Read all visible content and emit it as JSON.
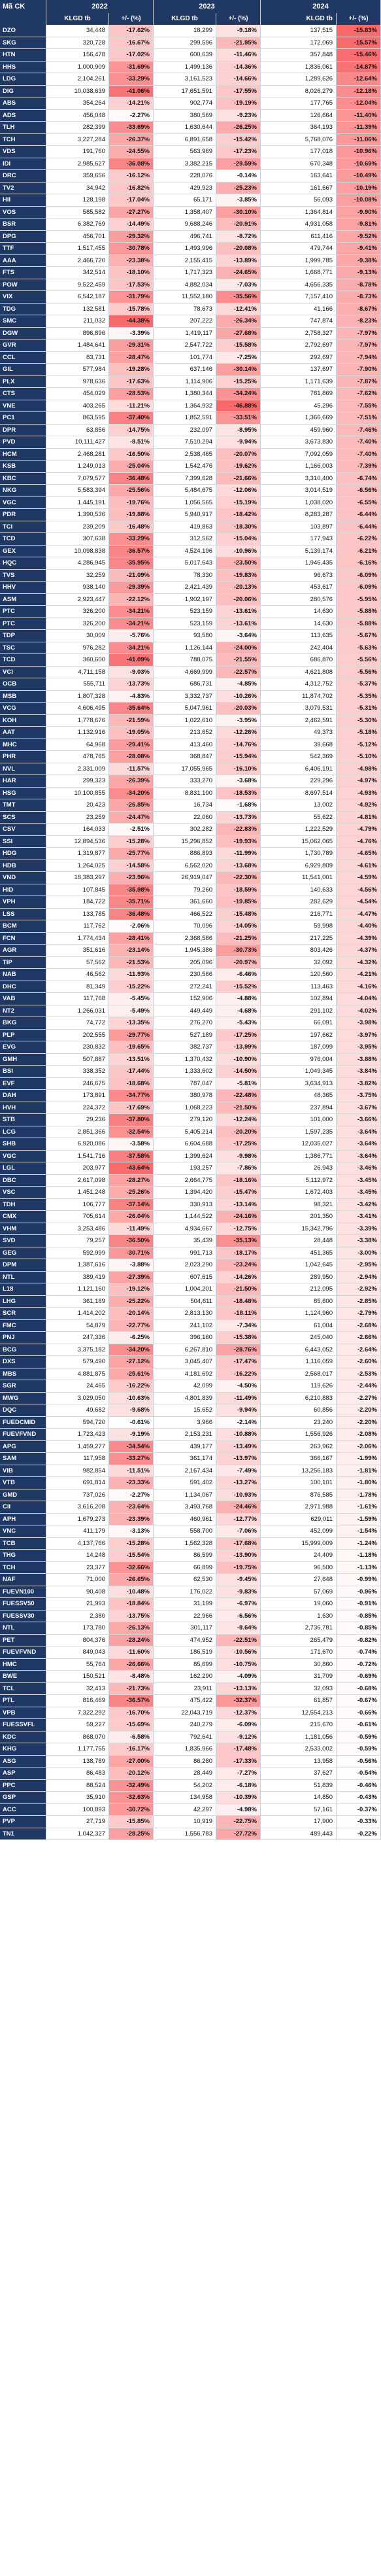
{
  "header": {
    "ticker_label": "Mã CK",
    "years": [
      "2022",
      "2023",
      "2024"
    ],
    "col_value": "KLGD tb",
    "col_change": "+/- (%)"
  },
  "rows": [
    [
      "DZO",
      "34,448",
      "-17.62%",
      "18,299",
      "-9.18%",
      "137,515",
      "-15.83%"
    ],
    [
      "SKG",
      "320,728",
      "-16.67%",
      "299,596",
      "-21.95%",
      "172,069",
      "-15.57%"
    ],
    [
      "HTN",
      "156,478",
      "-17.02%",
      "600,639",
      "-11.46%",
      "357,848",
      "-15.46%"
    ],
    [
      "HHS",
      "1,000,909",
      "-31.69%",
      "1,499,136",
      "-14.36%",
      "1,836,061",
      "-14.87%"
    ],
    [
      "LDG",
      "2,104,261",
      "-33.29%",
      "3,161,523",
      "-14.66%",
      "1,289,626",
      "-12.64%"
    ],
    [
      "DIG",
      "10,038,639",
      "-41.06%",
      "17,651,591",
      "-17.55%",
      "8,026,279",
      "-12.18%"
    ],
    [
      "ABS",
      "354,264",
      "-14.21%",
      "902,774",
      "-19.19%",
      "177,765",
      "-12.04%"
    ],
    [
      "ADS",
      "456,048",
      "-2.27%",
      "380,569",
      "-9.23%",
      "126,664",
      "-11.40%"
    ],
    [
      "TLH",
      "282,399",
      "-33.69%",
      "1,630,644",
      "-26.25%",
      "364,193",
      "-11.39%"
    ],
    [
      "TCH",
      "3,227,284",
      "-26.37%",
      "6,891,658",
      "-15.42%",
      "5,768,076",
      "-11.06%"
    ],
    [
      "VDS",
      "191,760",
      "-24.55%",
      "563,969",
      "-17.23%",
      "177,018",
      "-10.96%"
    ],
    [
      "IDI",
      "2,985,627",
      "-36.08%",
      "3,382,215",
      "-29.59%",
      "670,348",
      "-10.69%"
    ],
    [
      "DRC",
      "359,656",
      "-16.12%",
      "228,076",
      "-0.14%",
      "163,641",
      "-10.49%"
    ],
    [
      "TV2",
      "34,942",
      "-16.82%",
      "429,923",
      "-25.23%",
      "161,667",
      "-10.19%"
    ],
    [
      "HII",
      "128,198",
      "-17.04%",
      "65,171",
      "-3.85%",
      "56,093",
      "-10.08%"
    ],
    [
      "VOS",
      "585,582",
      "-27.27%",
      "1,358,407",
      "-30.10%",
      "1,364,814",
      "-9.90%"
    ],
    [
      "BSR",
      "6,382,769",
      "-14.49%",
      "9,688,246",
      "-20.91%",
      "4,931,058",
      "-9.81%"
    ],
    [
      "DPG",
      "456,701",
      "-29.32%",
      "496,741",
      "-8.72%",
      "611,416",
      "-9.52%"
    ],
    [
      "TTF",
      "1,517,455",
      "-30.78%",
      "1,493,996",
      "-20.08%",
      "479,744",
      "-9.41%"
    ],
    [
      "AAA",
      "2,466,720",
      "-23.38%",
      "2,155,415",
      "-13.89%",
      "1,999,785",
      "-9.38%"
    ],
    [
      "FTS",
      "342,514",
      "-18.10%",
      "1,717,323",
      "-24.65%",
      "1,668,771",
      "-9.13%"
    ],
    [
      "POW",
      "9,522,459",
      "-17.53%",
      "4,882,034",
      "-7.03%",
      "4,656,335",
      "-8.78%"
    ],
    [
      "VIX",
      "6,542,187",
      "-31.79%",
      "11,552,180",
      "-35.56%",
      "7,157,410",
      "-8.73%"
    ],
    [
      "TDG",
      "132,581",
      "-15.78%",
      "78,673",
      "-12.41%",
      "41,166",
      "-8.67%"
    ],
    [
      "SMC",
      "211,032",
      "-44.38%",
      "207,222",
      "-26.34%",
      "747,874",
      "-8.23%"
    ],
    [
      "DGW",
      "896,896",
      "-3.39%",
      "1,419,117",
      "-27.68%",
      "2,758,327",
      "-7.97%"
    ],
    [
      "GVR",
      "1,484,641",
      "-29.31%",
      "2,547,722",
      "-15.58%",
      "2,792,697",
      "-7.97%"
    ],
    [
      "CCL",
      "83,731",
      "-28.47%",
      "101,774",
      "-7.25%",
      "292,697",
      "-7.94%"
    ],
    [
      "GIL",
      "577,984",
      "-19.28%",
      "637,146",
      "-30.14%",
      "137,697",
      "-7.90%"
    ],
    [
      "PLX",
      "978,636",
      "-17.63%",
      "1,114,906",
      "-15.25%",
      "1,171,639",
      "-7.87%"
    ],
    [
      "CTS",
      "454,029",
      "-28.53%",
      "1,380,344",
      "-34.24%",
      "781,869",
      "-7.62%"
    ],
    [
      "VNE",
      "403,265",
      "-11.21%",
      "1,364,932",
      "-46.88%",
      "45,296",
      "-7.55%"
    ],
    [
      "PC1",
      "863,595",
      "-37.40%",
      "1,852,591",
      "-33.51%",
      "1,366,669",
      "-7.51%"
    ],
    [
      "DPR",
      "63,856",
      "-14.75%",
      "232,097",
      "-8.95%",
      "459,960",
      "-7.46%"
    ],
    [
      "PVD",
      "10,111,427",
      "-8.51%",
      "7,510,294",
      "-9.94%",
      "3,673,830",
      "-7.40%"
    ],
    [
      "HCM",
      "2,468,281",
      "-16.50%",
      "2,538,465",
      "-20.07%",
      "7,092,059",
      "-7.40%"
    ],
    [
      "KSB",
      "1,249,013",
      "-25.04%",
      "1,542,476",
      "-19.62%",
      "1,166,003",
      "-7.39%"
    ],
    [
      "KBC",
      "7,079,577",
      "-36.48%",
      "7,399,628",
      "-21.66%",
      "3,310,400",
      "-6.74%"
    ],
    [
      "NKG",
      "5,583,394",
      "-25.56%",
      "5,484,675",
      "-12.06%",
      "3,014,519",
      "-6.56%"
    ],
    [
      "VGC",
      "1,445,191",
      "-19.76%",
      "1,056,565",
      "-15.19%",
      "1,038,020",
      "-6.55%"
    ],
    [
      "PDR",
      "1,390,536",
      "-19.88%",
      "5,940,917",
      "-18.42%",
      "8,283,287",
      "-6.44%"
    ],
    [
      "TCI",
      "239,209",
      "-16.48%",
      "419,863",
      "-18.30%",
      "103,897",
      "-6.44%"
    ],
    [
      "TCD",
      "307,638",
      "-33.29%",
      "312,562",
      "-15.04%",
      "177,943",
      "-6.22%"
    ],
    [
      "GEX",
      "10,098,838",
      "-36.57%",
      "4,524,196",
      "-10.96%",
      "5,139,174",
      "-6.21%"
    ],
    [
      "HQC",
      "4,286,945",
      "-35.95%",
      "5,017,643",
      "-23.50%",
      "1,946,435",
      "-6.16%"
    ],
    [
      "TVS",
      "32,259",
      "-21.09%",
      "78,330",
      "-19.83%",
      "96,673",
      "-6.09%"
    ],
    [
      "HHV",
      "938,140",
      "-29.39%",
      "2,421,439",
      "-20.13%",
      "453,617",
      "-6.09%"
    ],
    [
      "ASM",
      "2,923,447",
      "-22.12%",
      "1,902,197",
      "-20.06%",
      "280,576",
      "-5.95%"
    ],
    [
      "PTC",
      "326,200",
      "-34.21%",
      "523,159",
      "-13.61%",
      "14,630",
      "-5.88%"
    ],
    [
      "PTC",
      "326,200",
      "-34.21%",
      "523,159",
      "-13.61%",
      "14,630",
      "-5.88%"
    ],
    [
      "TDP",
      "30,009",
      "-5.76%",
      "93,580",
      "-3.64%",
      "113,635",
      "-5.67%"
    ],
    [
      "TSC",
      "976,282",
      "-34.21%",
      "1,126,144",
      "-24.00%",
      "242,404",
      "-5.63%"
    ],
    [
      "TCD",
      "360,600",
      "-41.09%",
      "788,075",
      "-21.55%",
      "686,870",
      "-5.56%"
    ],
    [
      "VCI",
      "4,711,158",
      "-9.03%",
      "4,669,999",
      "-22.57%",
      "4,621,808",
      "-5.56%"
    ],
    [
      "OCB",
      "555,711",
      "-13.73%",
      "686,731",
      "-4.85%",
      "4,312,752",
      "-5.37%"
    ],
    [
      "MSB",
      "1,807,328",
      "-4.83%",
      "3,332,737",
      "-10.26%",
      "11,874,702",
      "-5.35%"
    ],
    [
      "VCG",
      "4,606,495",
      "-35.64%",
      "5,047,961",
      "-20.03%",
      "3,079,531",
      "-5.31%"
    ],
    [
      "KOH",
      "1,778,676",
      "-21.59%",
      "1,022,610",
      "-3.95%",
      "2,462,591",
      "-5.30%"
    ],
    [
      "AAT",
      "1,132,916",
      "-19.05%",
      "213,652",
      "-12.26%",
      "49,373",
      "-5.18%"
    ],
    [
      "MHC",
      "64,968",
      "-29.41%",
      "413,460",
      "-14.76%",
      "39,668",
      "-5.12%"
    ],
    [
      "PHR",
      "478,765",
      "-28.08%",
      "368,847",
      "-15.94%",
      "542,369",
      "-5.10%"
    ],
    [
      "NVL",
      "2,331,009",
      "-11.57%",
      "17,055,965",
      "-16.10%",
      "6,406,191",
      "-4.98%"
    ],
    [
      "HAR",
      "299,323",
      "-26.39%",
      "333,270",
      "-3.68%",
      "229,296",
      "-4.97%"
    ],
    [
      "HSG",
      "10,100,855",
      "-34.20%",
      "8,831,190",
      "-18.53%",
      "8,697,514",
      "-4.93%"
    ],
    [
      "TMT",
      "20,423",
      "-26.85%",
      "16,734",
      "-1.68%",
      "13,002",
      "-4.92%"
    ],
    [
      "SCS",
      "23,259",
      "-24.47%",
      "22,060",
      "-13.73%",
      "55,622",
      "-4.81%"
    ],
    [
      "CSV",
      "164,033",
      "-2.51%",
      "302,282",
      "-22.83%",
      "1,222,529",
      "-4.79%"
    ],
    [
      "SSI",
      "12,894,536",
      "-15.28%",
      "15,296,852",
      "-19.93%",
      "15,062,065",
      "-4.76%"
    ],
    [
      "HDG",
      "1,319,877",
      "-25.77%",
      "886,893",
      "-11.99%",
      "1,730,789",
      "-4.65%"
    ],
    [
      "HDB",
      "1,264,025",
      "-14.58%",
      "6,562,020",
      "-13.68%",
      "6,929,809",
      "-4.61%"
    ],
    [
      "VND",
      "18,383,297",
      "-23.96%",
      "26,919,047",
      "-22.30%",
      "11,541,001",
      "-4.59%"
    ],
    [
      "HID",
      "107,845",
      "-35.98%",
      "79,260",
      "-18.59%",
      "140,633",
      "-4.56%"
    ],
    [
      "VPH",
      "184,722",
      "-35.71%",
      "361,660",
      "-19.85%",
      "282,629",
      "-4.54%"
    ],
    [
      "LSS",
      "133,785",
      "-36.48%",
      "466,522",
      "-15.48%",
      "216,771",
      "-4.47%"
    ],
    [
      "BCM",
      "117,762",
      "-2.06%",
      "70,096",
      "-14.05%",
      "59,998",
      "-4.40%"
    ],
    [
      "FCN",
      "1,774,434",
      "-28.41%",
      "2,368,586",
      "-21.25%",
      "217,225",
      "-4.39%"
    ],
    [
      "AGR",
      "351,616",
      "-23.14%",
      "1,945,386",
      "-30.73%",
      "803,426",
      "-4.37%"
    ],
    [
      "TIP",
      "57,562",
      "-21.53%",
      "205,096",
      "-20.97%",
      "32,092",
      "-4.32%"
    ],
    [
      "NAB",
      "46,562",
      "-11.93%",
      "230,566",
      "-6.46%",
      "120,560",
      "-4.21%"
    ],
    [
      "DHC",
      "81,349",
      "-15.22%",
      "272,241",
      "-15.52%",
      "113,463",
      "-4.16%"
    ],
    [
      "VAB",
      "117,768",
      "-5.45%",
      "152,906",
      "-4.88%",
      "102,894",
      "-4.04%"
    ],
    [
      "NT2",
      "1,266,031",
      "-5.49%",
      "449,449",
      "-4.68%",
      "291,102",
      "-4.02%"
    ],
    [
      "BKG",
      "74,772",
      "-13.35%",
      "276,270",
      "-5.43%",
      "66,091",
      "-3.98%"
    ],
    [
      "PLP",
      "202,555",
      "-29.77%",
      "527,189",
      "-17.25%",
      "197,662",
      "-3.97%"
    ],
    [
      "EVG",
      "230,832",
      "-19.65%",
      "382,737",
      "-13.99%",
      "187,099",
      "-3.95%"
    ],
    [
      "GMH",
      "507,887",
      "-13.51%",
      "1,370,432",
      "-10.90%",
      "976,004",
      "-3.88%"
    ],
    [
      "BSI",
      "338,352",
      "-17.44%",
      "1,333,602",
      "-14.50%",
      "1,049,345",
      "-3.84%"
    ],
    [
      "EVF",
      "246,675",
      "-18.68%",
      "787,047",
      "-5.81%",
      "3,634,913",
      "-3.82%"
    ],
    [
      "DAH",
      "173,891",
      "-34.77%",
      "380,978",
      "-22.48%",
      "48,365",
      "-3.75%"
    ],
    [
      "HVH",
      "224,372",
      "-17.69%",
      "1,068,223",
      "-21.50%",
      "237,894",
      "-3.67%"
    ],
    [
      "STB",
      "29,236",
      "-37.80%",
      "279,120",
      "-12.24%",
      "101,000",
      "-3.66%"
    ],
    [
      "LCG",
      "2,851,366",
      "-32.54%",
      "5,405,214",
      "-20.20%",
      "1,597,235",
      "-3.64%"
    ],
    [
      "SHB",
      "6,920,086",
      "-3.58%",
      "6,604,688",
      "-17.25%",
      "12,035,027",
      "-3.64%"
    ],
    [
      "VGC",
      "1,541,716",
      "-37.58%",
      "1,399,624",
      "-9.98%",
      "1,386,771",
      "-3.64%"
    ],
    [
      "LGL",
      "203,977",
      "-43.64%",
      "193,257",
      "-7.86%",
      "26,943",
      "-3.46%"
    ],
    [
      "DBC",
      "2,617,098",
      "-28.27%",
      "2,664,775",
      "-18.16%",
      "5,112,972",
      "-3.45%"
    ],
    [
      "VSC",
      "1,451,248",
      "-25.26%",
      "1,394,420",
      "-15.47%",
      "1,672,403",
      "-3.45%"
    ],
    [
      "TDH",
      "106,777",
      "-37.14%",
      "330,913",
      "-13.14%",
      "98,321",
      "-3.42%"
    ],
    [
      "CMX",
      "705,614",
      "-26.04%",
      "1,144,522",
      "-24.16%",
      "201,350",
      "-3.41%"
    ],
    [
      "VHM",
      "3,253,486",
      "-11.49%",
      "4,934,667",
      "-12.75%",
      "15,342,796",
      "-3.39%"
    ],
    [
      "SVD",
      "79,257",
      "-36.50%",
      "35,439",
      "-35.13%",
      "28,448",
      "-3.38%"
    ],
    [
      "GEG",
      "592,999",
      "-30.71%",
      "991,713",
      "-18.17%",
      "451,365",
      "-3.00%"
    ],
    [
      "DPM",
      "1,387,616",
      "-3.88%",
      "2,023,290",
      "-23.24%",
      "1,042,645",
      "-2.95%"
    ],
    [
      "NTL",
      "389,419",
      "-27.39%",
      "607,615",
      "-14.26%",
      "289,950",
      "-2.94%"
    ],
    [
      "L18",
      "1,121,160",
      "-19.12%",
      "1,004,201",
      "-21.50%",
      "212,095",
      "-2.92%"
    ],
    [
      "LHG",
      "361,189",
      "-25.22%",
      "504,611",
      "-18.48%",
      "85,600",
      "-2.85%"
    ],
    [
      "SCR",
      "1,414,202",
      "-20.14%",
      "2,813,130",
      "-18.11%",
      "1,124,960",
      "-2.79%"
    ],
    [
      "FMC",
      "54,879",
      "-22.77%",
      "241,102",
      "-7.34%",
      "61,004",
      "-2.68%"
    ],
    [
      "PNJ",
      "247,336",
      "-6.25%",
      "396,160",
      "-15.38%",
      "245,040",
      "-2.66%"
    ],
    [
      "BCG",
      "3,375,182",
      "-34.20%",
      "6,267,810",
      "-28.76%",
      "6,443,052",
      "-2.64%"
    ],
    [
      "DXS",
      "579,490",
      "-27.12%",
      "3,045,407",
      "-17.47%",
      "1,116,059",
      "-2.60%"
    ],
    [
      "MBS",
      "4,881,875",
      "-25.61%",
      "4,181,692",
      "-16.22%",
      "2,568,017",
      "-2.53%"
    ],
    [
      "SGR",
      "24,465",
      "-16.22%",
      "42,099",
      "-4.50%",
      "119,626",
      "-2.44%"
    ],
    [
      "MWG",
      "3,029,050",
      "-10.63%",
      "4,801,839",
      "-11.49%",
      "6,210,883",
      "-2.27%"
    ],
    [
      "DQC",
      "49,682",
      "-9.68%",
      "15,652",
      "-9.94%",
      "60,856",
      "-2.20%"
    ],
    [
      "FUEDCMID",
      "594,720",
      "-0.61%",
      "3,966",
      "-2.14%",
      "23,240",
      "-2.20%"
    ],
    [
      "FUEVFVND",
      "1,723,423",
      "-9.19%",
      "2,153,231",
      "-10.88%",
      "1,556,926",
      "-2.08%"
    ],
    [
      "APG",
      "1,459,277",
      "-34.54%",
      "439,177",
      "-13.49%",
      "263,962",
      "-2.06%"
    ],
    [
      "SAM",
      "117,958",
      "-33.27%",
      "361,174",
      "-13.97%",
      "366,167",
      "-1.99%"
    ],
    [
      "VIB",
      "982,854",
      "-11.51%",
      "2,167,434",
      "-7.49%",
      "13,256,183",
      "-1.81%"
    ],
    [
      "VTB",
      "691,814",
      "-23.33%",
      "591,402",
      "-13.27%",
      "100,101",
      "-1.80%"
    ],
    [
      "GMD",
      "737,026",
      "-2.27%",
      "1,134,067",
      "-10.93%",
      "876,585",
      "-1.78%"
    ],
    [
      "CII",
      "3,616,208",
      "-23.64%",
      "3,493,768",
      "-24.46%",
      "2,971,988",
      "-1.61%"
    ],
    [
      "APH",
      "1,679,273",
      "-23.39%",
      "460,961",
      "-12.77%",
      "629,011",
      "-1.59%"
    ],
    [
      "VNC",
      "411,179",
      "-3.13%",
      "558,700",
      "-7.06%",
      "452,099",
      "-1.54%"
    ],
    [
      "TCB",
      "4,137,766",
      "-15.28%",
      "1,562,328",
      "-17.68%",
      "15,999,009",
      "-1.24%"
    ],
    [
      "THG",
      "14,248",
      "-15.54%",
      "86,599",
      "-13.90%",
      "24,409",
      "-1.18%"
    ],
    [
      "TCH",
      "23,377",
      "-32.66%",
      "66,899",
      "-19.75%",
      "96,500",
      "-1.13%"
    ],
    [
      "NAF",
      "71,000",
      "-26.65%",
      "62,530",
      "-9.45%",
      "27,648",
      "-0.99%"
    ],
    [
      "FUEVN100",
      "90,408",
      "-10.48%",
      "176,022",
      "-9.83%",
      "57,069",
      "-0.96%"
    ],
    [
      "FUESSV50",
      "21,993",
      "-18.84%",
      "31,199",
      "-6.97%",
      "19,060",
      "-0.91%"
    ],
    [
      "FUESSV30",
      "2,380",
      "-13.75%",
      "22,966",
      "-6.56%",
      "1,630",
      "-0.85%"
    ],
    [
      "NTL",
      "173,780",
      "-26.13%",
      "301,117",
      "-8.64%",
      "2,736,781",
      "-0.85%"
    ],
    [
      "PET",
      "804,376",
      "-28.24%",
      "474,952",
      "-22.51%",
      "265,479",
      "-0.82%"
    ],
    [
      "FUEVFVND",
      "849,043",
      "-11.60%",
      "186,519",
      "-10.56%",
      "171,670",
      "-0.74%"
    ],
    [
      "HMC",
      "55,764",
      "-26.66%",
      "85,699",
      "-10.75%",
      "30,860",
      "-0.72%"
    ],
    [
      "BWE",
      "150,521",
      "-8.48%",
      "162,290",
      "-4.09%",
      "31,709",
      "-0.69%"
    ],
    [
      "TCL",
      "32,413",
      "-21.73%",
      "23,911",
      "-13.13%",
      "32,093",
      "-0.68%"
    ],
    [
      "PTL",
      "816,469",
      "-36.57%",
      "475,422",
      "-32.37%",
      "61,857",
      "-0.67%"
    ],
    [
      "VPB",
      "7,322,292",
      "-16.70%",
      "22,043,719",
      "-12.37%",
      "12,554,213",
      "-0.66%"
    ],
    [
      "FUESSVFL",
      "59,227",
      "-15.69%",
      "240,279",
      "-6.09%",
      "215,670",
      "-0.61%"
    ],
    [
      "KDC",
      "868,070",
      "-6.58%",
      "792,641",
      "-9.12%",
      "1,181,056",
      "-0.59%"
    ],
    [
      "KHG",
      "1,177,755",
      "-16.17%",
      "1,835,966",
      "-17.48%",
      "2,533,002",
      "-0.59%"
    ],
    [
      "ASG",
      "138,789",
      "-27.00%",
      "86,280",
      "-17.33%",
      "13,958",
      "-0.56%"
    ],
    [
      "ASP",
      "86,483",
      "-20.12%",
      "28,449",
      "-7.27%",
      "37,627",
      "-0.54%"
    ],
    [
      "PPC",
      "88,524",
      "-32.49%",
      "54,202",
      "-6.18%",
      "51,839",
      "-0.46%"
    ],
    [
      "GSP",
      "35,910",
      "-32.63%",
      "134,958",
      "-10.39%",
      "14,850",
      "-0.43%"
    ],
    [
      "ACC",
      "100,893",
      "-30.72%",
      "42,297",
      "-4.98%",
      "57,161",
      "-0.37%"
    ],
    [
      "PVP",
      "27,719",
      "-15.85%",
      "10,919",
      "-22.75%",
      "17,900",
      "-0.33%"
    ],
    [
      "TN1",
      "1,042,327",
      "-28.25%",
      "1,556,783",
      "-27.72%",
      "489,443",
      "-0.22%"
    ]
  ],
  "colors": {
    "header_bg": "#1f3864",
    "header_text": "#ffffff",
    "cell_bg": "#ffffff",
    "heat_max": "#f8696b"
  }
}
